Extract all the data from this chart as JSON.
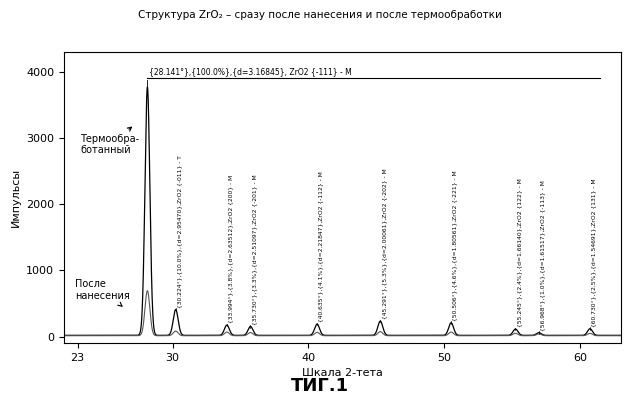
{
  "title": "Структура ZrO₂ – сразу после нанесения и после термообработки",
  "xlabel": "Шкала 2-тета",
  "ylabel": "Импульсы",
  "fig_caption": "ΤИГ.1",
  "xlim": [
    22,
    63
  ],
  "ylim": [
    -100,
    4300
  ],
  "yticks": [
    0,
    1000,
    2000,
    3000,
    4000
  ],
  "xticks": [
    23,
    30,
    40,
    50,
    60
  ],
  "background_color": "#ffffff",
  "peaks": [
    {
      "x": 28.141,
      "label": "{28.141°},{100.0%},{d=3.16845}, ZrO2 {-111} - M",
      "height_T": 3750,
      "height_A": 680,
      "top_label": true
    },
    {
      "x": 30.224,
      "label": "{30.224°},{10.0%},{d=2.95470},ZrO2 {-011} - T",
      "height_T": 390,
      "height_A": 70
    },
    {
      "x": 33.994,
      "label": "{33.994°},{3.8%},{d=2.63512},ZrO2 {200} - M",
      "height_T": 155,
      "height_A": 55
    },
    {
      "x": 35.73,
      "label": "{35.730°},{3.3%},{d=2.51097},ZrO2 {-201} - M",
      "height_T": 135,
      "height_A": 48
    },
    {
      "x": 40.635,
      "label": "{40.635°},{4.1%},{d=2.21847},ZrO2 {-112} - M",
      "height_T": 170,
      "height_A": 52
    },
    {
      "x": 45.291,
      "label": "{45.291°},{5.3%},{d=2.00061},ZrO2 {-202} - M",
      "height_T": 215,
      "height_A": 62
    },
    {
      "x": 50.506,
      "label": "{50.506°},{4.6%},{d=1.80561},ZrO2 {-221} - M",
      "height_T": 190,
      "height_A": 55
    },
    {
      "x": 55.245,
      "label": "{55.245°},{2.4%},{d=1.66140},ZrO2 {122} - M",
      "height_T": 95,
      "height_A": 38
    },
    {
      "x": 56.968,
      "label": "{56.968°},{1.0%},{d=1.61517},ZrO2 {-113} - M",
      "height_T": 40,
      "height_A": 28
    },
    {
      "x": 60.73,
      "label": "{60.730°},{2.5%},{d=1.54691},ZrO2 {131} - M",
      "height_T": 100,
      "height_A": 36
    }
  ],
  "label_T": "Термообра-\nботанный",
  "label_A": "После\nнанесения",
  "line_color_T": "#000000",
  "line_color_A": "#555555",
  "main_peak_label": "{28.141°},{100.0%},{d=3.16845}, ZrO2 {-111} - M",
  "main_peak_x": 28.141,
  "underline_x_end": 61.5
}
